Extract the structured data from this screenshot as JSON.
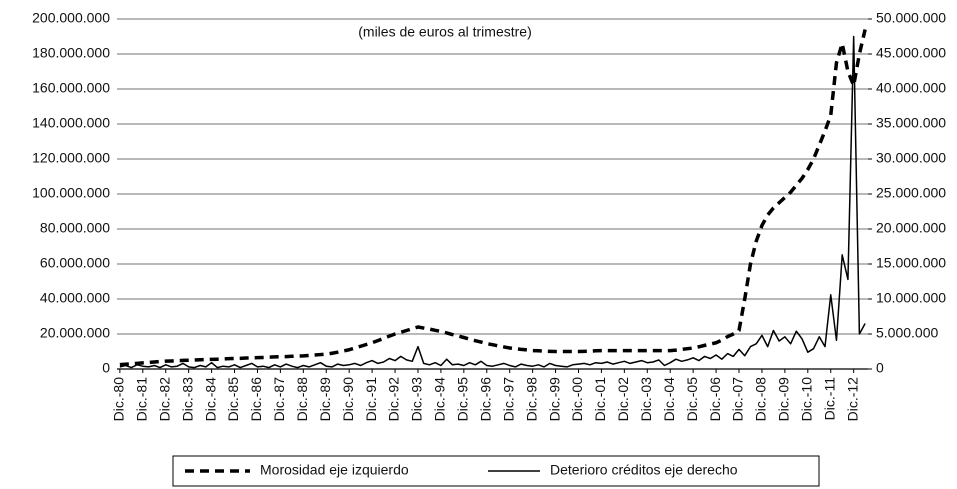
{
  "chart_data": {
    "type": "line",
    "title": "(miles de euros al trimestre)",
    "categories": [
      "Dic.-80",
      null,
      null,
      null,
      "Dic.-81",
      null,
      null,
      null,
      "Dic.-82",
      null,
      null,
      null,
      "Dic.-83",
      null,
      null,
      null,
      "Dic.-84",
      null,
      null,
      null,
      "Dic.-85",
      null,
      null,
      null,
      "Dic.-86",
      null,
      null,
      null,
      "Dic.-87",
      null,
      null,
      null,
      "Dic.-88",
      null,
      null,
      null,
      "Dic.-89",
      null,
      null,
      null,
      "Dic.-90",
      null,
      null,
      null,
      "Dic.-91",
      null,
      null,
      null,
      "Dic.-92",
      null,
      null,
      null,
      "Dic.-93",
      null,
      null,
      null,
      "Dic.-94",
      null,
      null,
      null,
      "Dic.-95",
      null,
      null,
      null,
      "Dic.-96",
      null,
      null,
      null,
      "Dic.-97",
      null,
      null,
      null,
      "Dic.-98",
      null,
      null,
      null,
      "Dic.-99",
      null,
      null,
      null,
      "Dic.-00",
      null,
      null,
      null,
      "Dic.-01",
      null,
      null,
      null,
      "Dic.-02",
      null,
      null,
      null,
      "Dic.-03",
      null,
      null,
      null,
      "Dic.-04",
      null,
      null,
      null,
      "Dic.-05",
      null,
      null,
      null,
      "Dic.-06",
      null,
      null,
      null,
      "Dic.-07",
      null,
      null,
      null,
      "Dic.-08",
      null,
      null,
      null,
      "Dic.-09",
      null,
      null,
      null,
      "Dic.-10",
      null,
      null,
      null,
      "Dic.-11",
      null,
      null,
      null,
      "Dic.-12",
      null,
      null
    ],
    "series": [
      {
        "name": "Morosidad eje izquierdo",
        "color": "#000000",
        "linestyle": "dashed",
        "axis": "y",
        "values": [
          2500000,
          2750000,
          3000000,
          3250000,
          3500000,
          3750000,
          4000000,
          4250000,
          4500000,
          4600000,
          4750000,
          4900000,
          5000000,
          5100000,
          5250000,
          5400000,
          5500000,
          5600000,
          5750000,
          5900000,
          6000000,
          6100000,
          6250000,
          6400000,
          6500000,
          6600000,
          6750000,
          6900000,
          7000000,
          7100000,
          7250000,
          7400000,
          7500000,
          7750000,
          8000000,
          8250000,
          8500000,
          9000000,
          9600000,
          10300000,
          11000000,
          12000000,
          13000000,
          14000000,
          15000000,
          16200000,
          17500000,
          18800000,
          20000000,
          21000000,
          22000000,
          23000000,
          24000000,
          23400000,
          22800000,
          22100000,
          21500000,
          20600000,
          19700000,
          18900000,
          18000000,
          17100000,
          16200000,
          15400000,
          14500000,
          13900000,
          13200000,
          12600000,
          12000000,
          11600000,
          11200000,
          10900000,
          10500000,
          10400000,
          10200000,
          10100000,
          10000000,
          10000000,
          10000000,
          10000000,
          10000000,
          10100000,
          10200000,
          10400000,
          10500000,
          10500000,
          10500000,
          10500000,
          10500000,
          10500000,
          10500000,
          10500000,
          10500000,
          10500000,
          10500000,
          10500000,
          10500000,
          10800000,
          11200000,
          11600000,
          12000000,
          12700000,
          13500000,
          14200000,
          15000000,
          16500000,
          18500000,
          20000000,
          22000000,
          40000000,
          60000000,
          73000000,
          82000000,
          88000000,
          92000000,
          95000000,
          98000000,
          101000000,
          105000000,
          109000000,
          114000000,
          120000000,
          128000000,
          136000000,
          145000000,
          175000000,
          186000000,
          170000000,
          162000000,
          180000000,
          194000000
        ]
      },
      {
        "name": "Deterioro créditos eje derecho",
        "color": "#000000",
        "linestyle": "solid",
        "axis": "y2",
        "values": [
          300000,
          500000,
          200000,
          600000,
          400000,
          300000,
          500000,
          200000,
          600000,
          300000,
          400000,
          800000,
          300000,
          200000,
          500000,
          300000,
          900000,
          200000,
          400000,
          300000,
          600000,
          200000,
          500000,
          800000,
          300000,
          400000,
          200000,
          600000,
          300000,
          700000,
          400000,
          200000,
          500000,
          300000,
          600000,
          900000,
          400000,
          300000,
          700000,
          500000,
          600000,
          800000,
          500000,
          900000,
          1200000,
          800000,
          1000000,
          1500000,
          1200000,
          1800000,
          1300000,
          1100000,
          3200000,
          800000,
          600000,
          900000,
          500000,
          1400000,
          600000,
          700000,
          500000,
          900000,
          600000,
          1100000,
          500000,
          400000,
          600000,
          800000,
          500000,
          300000,
          700000,
          500000,
          400000,
          600000,
          300000,
          800000,
          500000,
          400000,
          300000,
          600000,
          700000,
          800000,
          600000,
          900000,
          800000,
          1000000,
          700000,
          900000,
          1100000,
          800000,
          1000000,
          1200000,
          900000,
          1000000,
          1300000,
          500000,
          900000,
          1400000,
          1100000,
          1300000,
          1600000,
          1200000,
          1800000,
          1500000,
          2000000,
          1400000,
          2200000,
          1800000,
          2800000,
          1900000,
          3200000,
          3600000,
          4800000,
          3200000,
          5500000,
          4000000,
          4600000,
          3600000,
          5400000,
          4300000,
          2400000,
          2900000,
          4600000,
          3200000,
          10600000,
          4100000,
          16300000,
          12800000,
          47500000,
          5000000,
          6500000
        ]
      }
    ],
    "ylim": [
      0,
      200000000
    ],
    "yticks": [
      0,
      {
        "value": 20000000,
        "label": "20.000.000"
      },
      {
        "value": 40000000,
        "label": "40.000.000"
      },
      {
        "value": 60000000,
        "label": "60.000.000"
      },
      {
        "value": 80000000,
        "label": "80.000.000"
      },
      {
        "value": 100000000,
        "label": "100.000.000"
      },
      {
        "value": 120000000,
        "label": "120.000.000"
      },
      {
        "value": 140000000,
        "label": "140.000.000"
      },
      {
        "value": 160000000,
        "label": "160.000.000"
      },
      {
        "value": 180000000,
        "label": "180.000.000"
      },
      {
        "value": 200000000,
        "label": "200.000.000"
      }
    ],
    "y2lim": [
      0,
      50000000
    ],
    "y2ticks": [
      0,
      {
        "value": 5000000,
        "label": "5.000.000"
      },
      {
        "value": 10000000,
        "label": "10.000.000"
      },
      {
        "value": 15000000,
        "label": "15.000.000"
      },
      {
        "value": 20000000,
        "label": "20.000.000"
      },
      {
        "value": 25000000,
        "label": "25.000.000"
      },
      {
        "value": 30000000,
        "label": "30.000.000"
      },
      {
        "value": 35000000,
        "label": "35.000.000"
      },
      {
        "value": 40000000,
        "label": "40.000.000"
      },
      {
        "value": 45000000,
        "label": "45.000.000"
      },
      {
        "value": 50000000,
        "label": "50.000.000"
      }
    ],
    "grid": true,
    "legend": "bottom"
  }
}
